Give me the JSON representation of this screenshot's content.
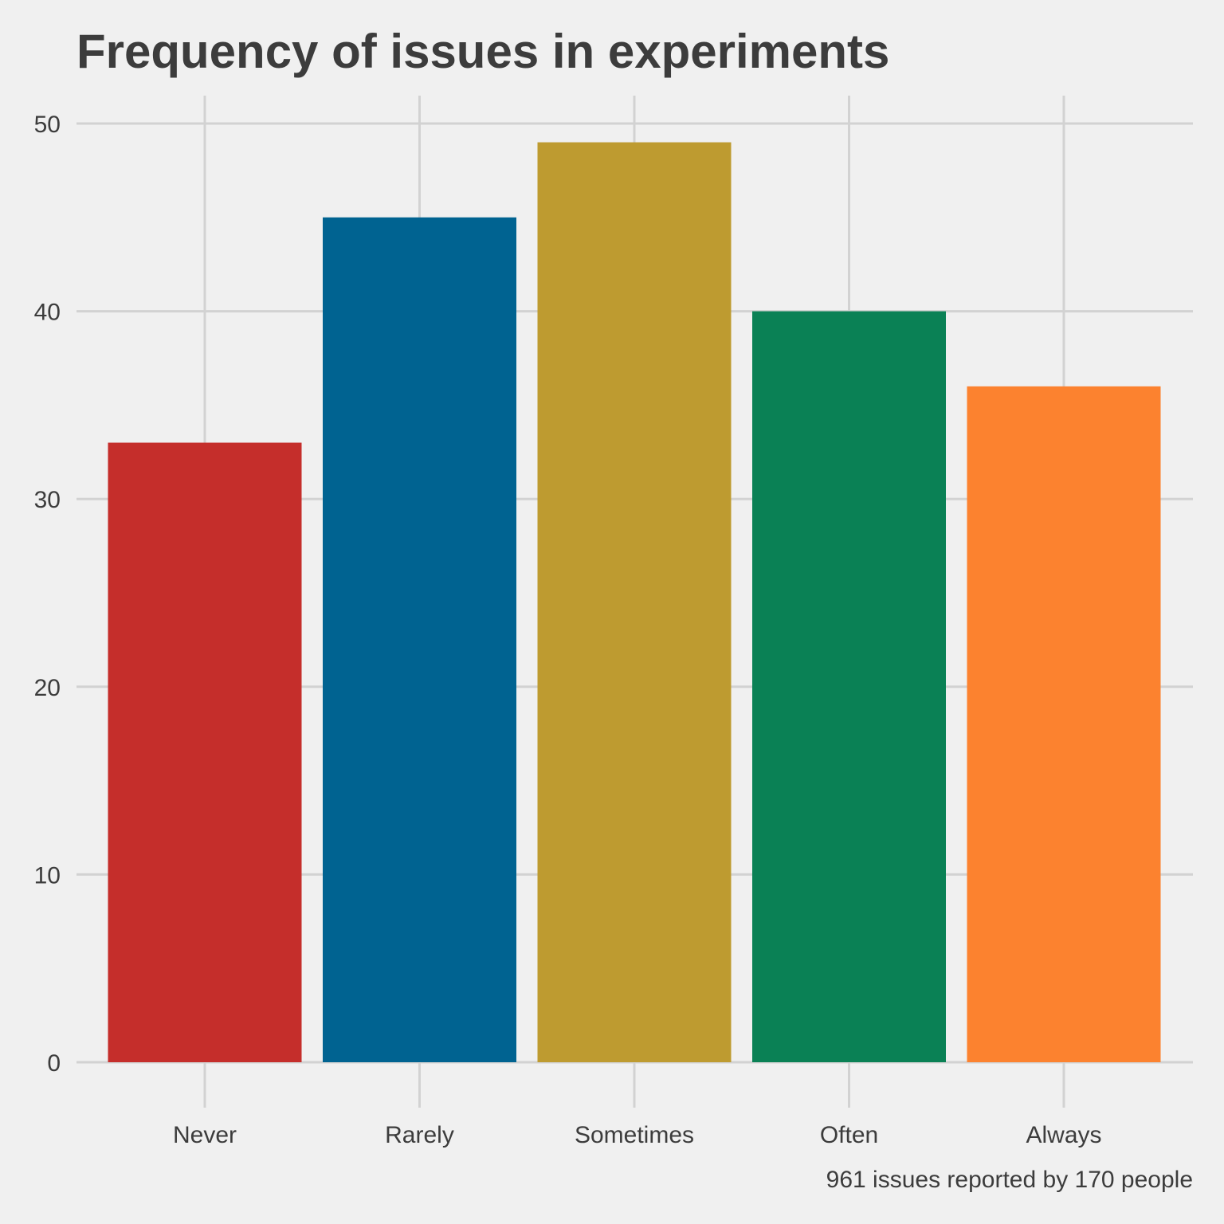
{
  "chart_data": {
    "type": "bar",
    "title": "Frequency of issues in experiments",
    "caption": "961 issues reported by 170 people",
    "xlabel": "",
    "ylabel": "",
    "categories": [
      "Never",
      "Rarely",
      "Sometimes",
      "Often",
      "Always"
    ],
    "values": [
      33,
      45,
      49,
      40,
      36
    ],
    "colors": [
      "#c52e2b",
      "#006391",
      "#be9b30",
      "#0a8155",
      "#fc822f"
    ],
    "ylim": [
      0,
      50
    ],
    "yticks": [
      0,
      10,
      20,
      30,
      40,
      50
    ],
    "grid": true,
    "legend": "none"
  }
}
